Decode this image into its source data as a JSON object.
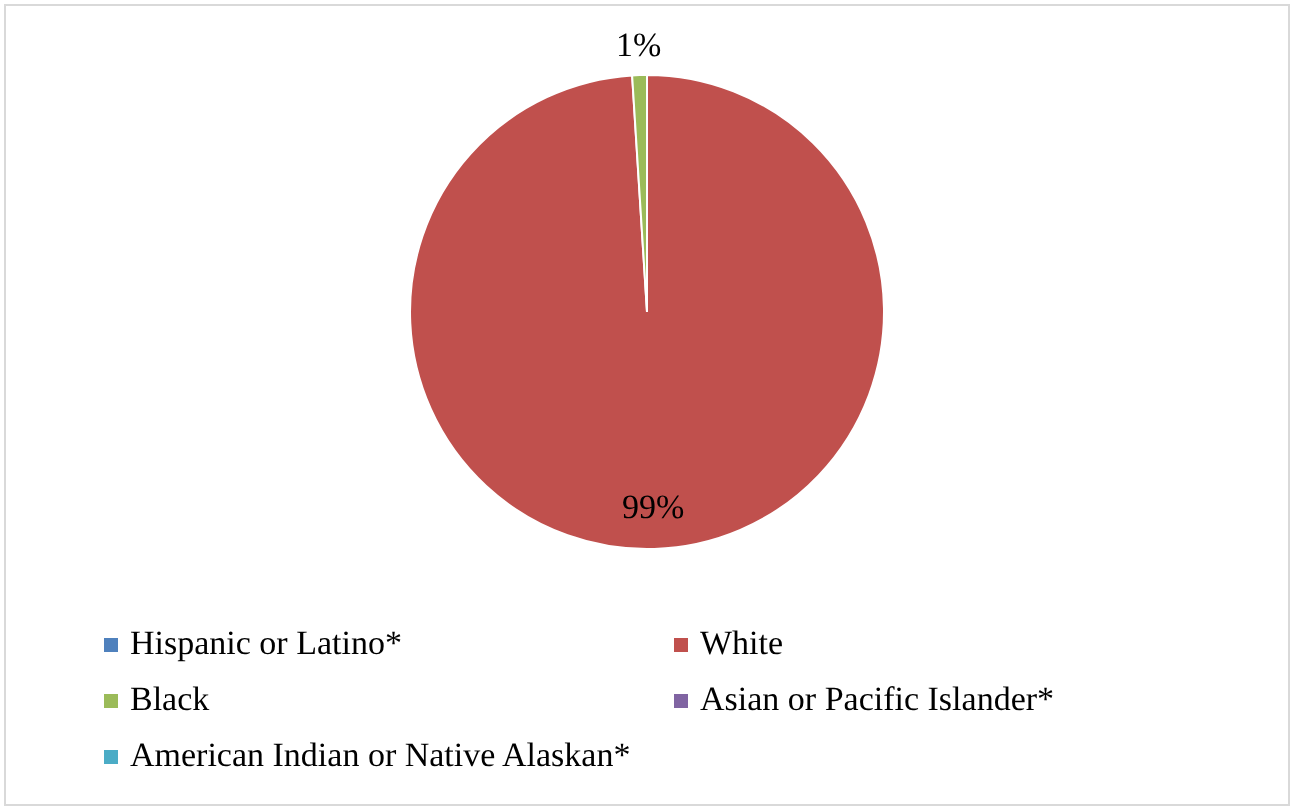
{
  "chart_data": {
    "type": "pie",
    "categories": [
      "Hispanic or Latino*",
      "White",
      "Black",
      "Asian or Pacific Islander*",
      "American Indian or Native Alaskan*"
    ],
    "values": [
      0,
      99,
      1,
      0,
      0
    ],
    "colors": [
      "#4f81bd",
      "#c0504d",
      "#9bbb59",
      "#8064a2",
      "#4bacc6"
    ],
    "value_labels": [
      null,
      "99%",
      "1%",
      null,
      null
    ],
    "legend": "bottom"
  }
}
